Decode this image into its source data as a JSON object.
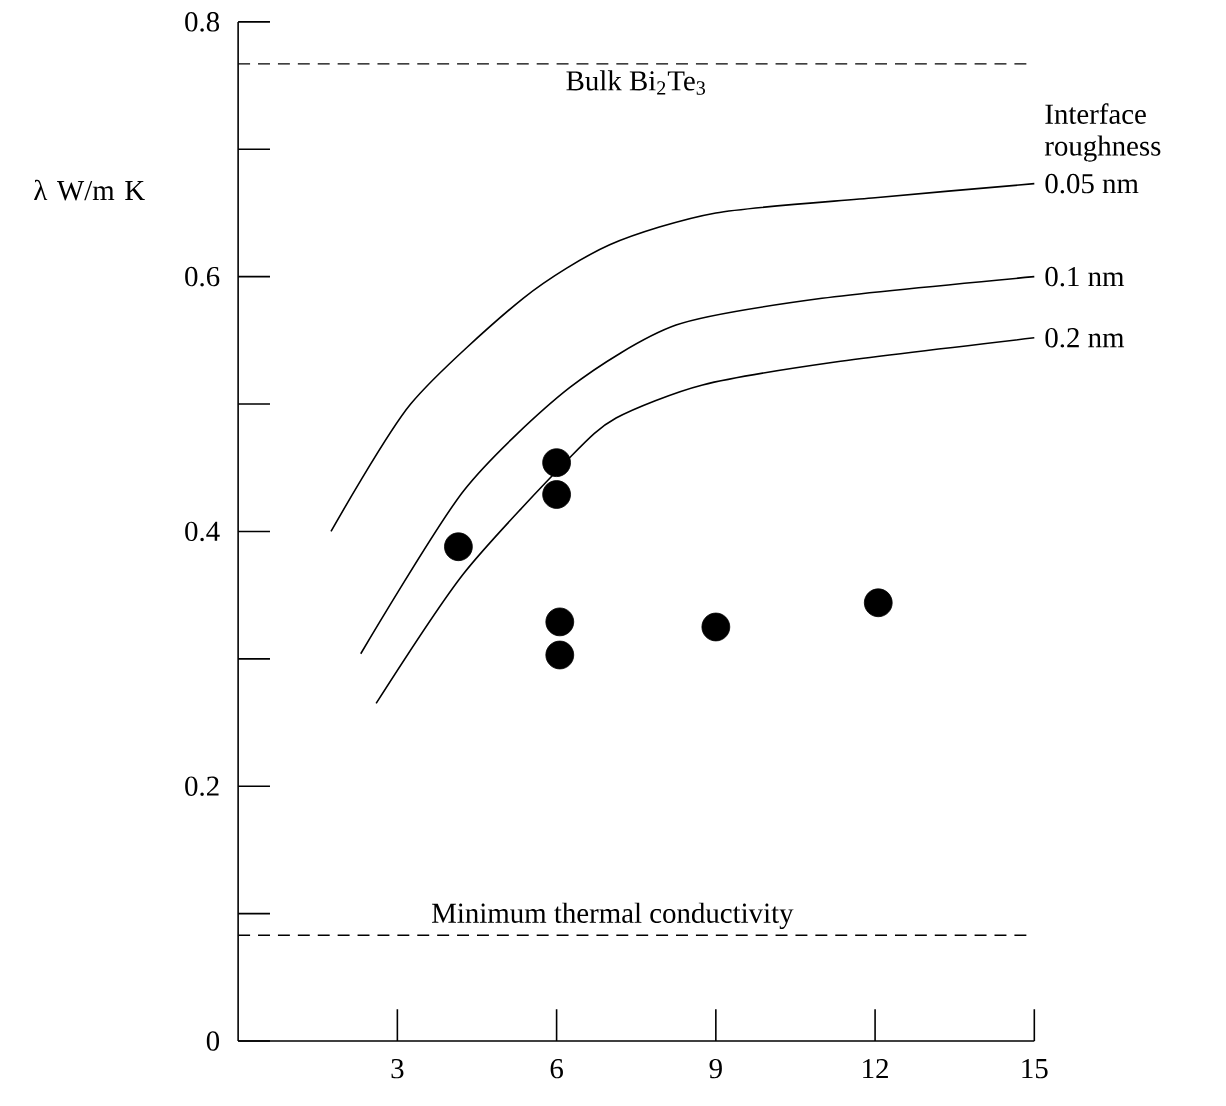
{
  "chart_data": {
    "type": "line",
    "ylabel": "λ W/m K",
    "legend_title": "Interface roughness",
    "xlim": [
      0,
      15
    ],
    "ylim": [
      0,
      0.8
    ],
    "xticks": [
      3,
      6,
      9,
      12,
      15
    ],
    "yticks": [
      0,
      {
        "value": 0.1,
        "label": null
      },
      0.2,
      {
        "value": 0.3,
        "label": null
      },
      0.4,
      {
        "value": 0.5,
        "label": null
      },
      0.6,
      {
        "value": 0.7,
        "label": null
      },
      0.8
    ],
    "series": [
      {
        "name": "0.05 nm",
        "color": "#000000",
        "marker": "none",
        "x": [
          1.75,
          3.25,
          5.37,
          7,
          9,
          12,
          15
        ],
        "values": [
          0.4,
          0.5,
          0.583,
          0.625,
          0.65,
          0.662,
          0.673
        ]
      },
      {
        "name": "0.1 nm",
        "color": "#000000",
        "marker": "none",
        "x": [
          2.31,
          4.25,
          6.25,
          8.25,
          11,
          15
        ],
        "values": [
          0.304,
          0.432,
          0.513,
          0.562,
          0.583,
          0.6
        ]
      },
      {
        "name": "0.2 nm",
        "color": "#000000",
        "marker": "none",
        "x": [
          2.6,
          4.25,
          6.25,
          7.12,
          8.75,
          11.25,
          15
        ],
        "values": [
          0.265,
          0.367,
          0.458,
          0.489,
          0.515,
          0.533,
          0.552
        ]
      },
      {
        "type": "scatter",
        "color": "#000000",
        "marker": "circle",
        "x": [
          4.15,
          6,
          6,
          6.06,
          6.06,
          9,
          12.06
        ],
        "values": [
          0.388,
          0.454,
          0.429,
          0.329,
          0.303,
          0.325,
          0.344
        ]
      }
    ],
    "ref_lines": [
      {
        "axis": "y",
        "value": 0.767,
        "label": "Bulk Bi$_{2}$Te$_{3}$",
        "line_style": "dashed",
        "color": "#000000"
      },
      {
        "axis": "y",
        "value": 0.083,
        "label": "Minimum thermal conductivity",
        "line_style": "dashed",
        "color": "#000000"
      }
    ]
  }
}
